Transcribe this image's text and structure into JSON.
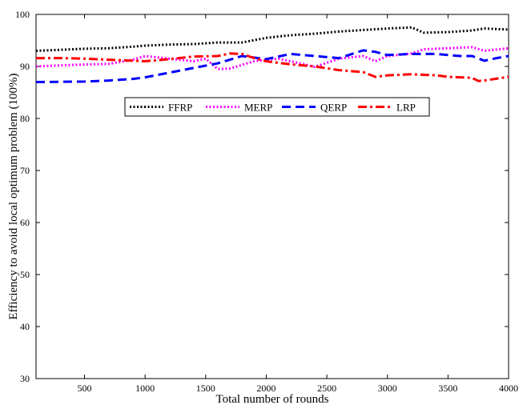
{
  "chart_data": {
    "type": "line",
    "title": "",
    "xlabel": "Total number of rounds",
    "ylabel": "Efficiency to avoid local optimum problem (100%)",
    "xlim": [
      100,
      4000
    ],
    "ylim": [
      30,
      100
    ],
    "xticks": [
      500,
      1000,
      1500,
      2000,
      2500,
      3000,
      3500,
      4000
    ],
    "yticks": [
      30,
      40,
      50,
      60,
      70,
      80,
      90,
      100
    ],
    "grid": false,
    "legend_position": "center-top",
    "series": [
      {
        "name": "FFRP",
        "color": "#000000",
        "dash": "dotted",
        "x": [
          100,
          300,
          500,
          700,
          900,
          1000,
          1200,
          1400,
          1600,
          1800,
          2000,
          2200,
          2400,
          2600,
          2800,
          3000,
          3200,
          3300,
          3500,
          3700,
          3800,
          4000
        ],
        "y": [
          93.0,
          93.2,
          93.4,
          93.5,
          93.8,
          94.0,
          94.2,
          94.3,
          94.6,
          94.6,
          95.5,
          96.0,
          96.3,
          96.7,
          97.0,
          97.3,
          97.5,
          96.5,
          96.6,
          96.9,
          97.3,
          97.1
        ]
      },
      {
        "name": "MERP",
        "color": "#ff00ff",
        "dash": "dotted",
        "x": [
          100,
          400,
          700,
          900,
          1000,
          1200,
          1400,
          1500,
          1600,
          1700,
          1900,
          2100,
          2300,
          2400,
          2600,
          2800,
          2900,
          3000,
          3200,
          3300,
          3500,
          3700,
          3800,
          4000
        ],
        "y": [
          90.0,
          90.3,
          90.5,
          91.3,
          92.0,
          91.5,
          91.0,
          91.5,
          89.5,
          89.6,
          91.0,
          91.5,
          90.5,
          89.9,
          91.5,
          92.0,
          91.0,
          92.0,
          92.5,
          93.3,
          93.5,
          93.7,
          93.0,
          93.5
        ]
      },
      {
        "name": "QERP",
        "color": "#0000ff",
        "dash": "dashed",
        "x": [
          100,
          500,
          700,
          900,
          1000,
          1200,
          1400,
          1600,
          1800,
          2000,
          2200,
          2400,
          2600,
          2800,
          2900,
          3000,
          3200,
          3400,
          3600,
          3700,
          3800,
          3900,
          4000
        ],
        "y": [
          87.0,
          87.1,
          87.3,
          87.6,
          87.9,
          88.8,
          89.7,
          90.6,
          92.0,
          91.4,
          92.4,
          92.0,
          91.6,
          93.1,
          92.8,
          92.2,
          92.4,
          92.4,
          92.0,
          92.0,
          91.1,
          91.6,
          92.0
        ]
      },
      {
        "name": "LRP",
        "color": "#ff0000",
        "dash": "dashdot",
        "x": [
          100,
          300,
          500,
          700,
          900,
          1000,
          1200,
          1400,
          1600,
          1700,
          1800,
          1900,
          2000,
          2200,
          2400,
          2600,
          2800,
          2900,
          3000,
          3200,
          3400,
          3500,
          3700,
          3750,
          3800,
          4000
        ],
        "y": [
          91.6,
          91.6,
          91.5,
          91.3,
          91.1,
          91.0,
          91.4,
          91.9,
          92.0,
          92.5,
          92.4,
          91.6,
          91.0,
          90.4,
          90.0,
          89.3,
          88.9,
          88.0,
          88.3,
          88.5,
          88.3,
          88.0,
          87.8,
          87.2,
          87.3,
          88.0
        ]
      }
    ]
  }
}
